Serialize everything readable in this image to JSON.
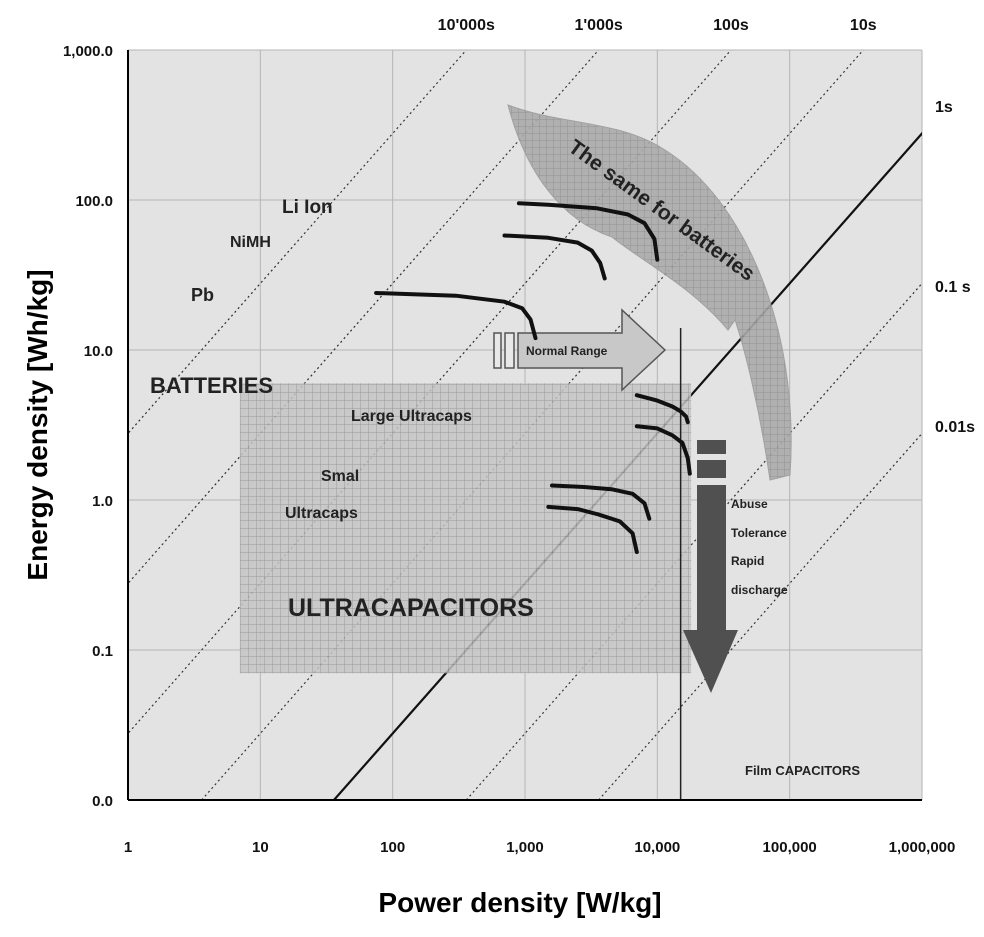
{
  "chart_data": {
    "type": "line",
    "title": "",
    "xlabel": "Power density [W/kg]",
    "ylabel": "Energy density [Wh/kg]",
    "x_scale": "log",
    "y_scale": "log",
    "xlim": [
      1,
      1000000
    ],
    "ylim": [
      0.01,
      1000
    ],
    "x_ticks": [
      1,
      10,
      100,
      1000,
      10000,
      100000,
      1000000
    ],
    "x_tick_labels": [
      "1",
      "10",
      "100",
      "1,000",
      "10,000",
      "100,000",
      "1,000,000"
    ],
    "y_ticks": [
      0.01,
      0.1,
      1,
      10,
      100,
      1000
    ],
    "y_tick_labels": [
      "0.0",
      "0.1",
      "1.0",
      "10.0",
      "100.0",
      "1,000.0"
    ],
    "grid": true,
    "time_constant_lines": [
      {
        "label": "10'000s",
        "seconds": 10000,
        "style": "dotted"
      },
      {
        "label": "1'000s",
        "seconds": 1000,
        "style": "dotted"
      },
      {
        "label": "100s",
        "seconds": 100,
        "style": "dotted"
      },
      {
        "label": "10s",
        "seconds": 10,
        "style": "dotted"
      },
      {
        "label": "1s",
        "seconds": 1,
        "style": "solid"
      },
      {
        "label": "0.1 s",
        "seconds": 0.1,
        "style": "dotted"
      },
      {
        "label": "0.01s",
        "seconds": 0.01,
        "style": "dotted"
      }
    ],
    "series": [
      {
        "name": "Li Ion",
        "x": [
          900,
          1500,
          3500,
          6000,
          8000,
          9500,
          10000
        ],
        "y": [
          95,
          93,
          88,
          80,
          70,
          55,
          40
        ]
      },
      {
        "name": "NiMH",
        "x": [
          700,
          1500,
          2500,
          3200,
          3700,
          4000
        ],
        "y": [
          58,
          56,
          52,
          46,
          38,
          30
        ]
      },
      {
        "name": "Pb",
        "x": [
          75,
          300,
          700,
          950,
          1100,
          1200
        ],
        "y": [
          24,
          23,
          21,
          19,
          16,
          12
        ]
      },
      {
        "name": "Large Ultracaps",
        "x": [
          7000,
          10000,
          13000,
          15000,
          16500,
          17000
        ],
        "y": [
          5,
          4.6,
          4.2,
          3.9,
          3.6,
          3.3
        ]
      },
      {
        "name": "Large Ultracaps",
        "x": [
          7000,
          10000,
          13000,
          15500,
          17000,
          17600
        ],
        "y": [
          3.1,
          3.0,
          2.7,
          2.4,
          1.9,
          1.5
        ]
      },
      {
        "name": "Small Ultracaps",
        "x": [
          1600,
          2800,
          4500,
          6500,
          8000,
          8700
        ],
        "y": [
          1.25,
          1.22,
          1.18,
          1.1,
          0.95,
          0.75
        ]
      },
      {
        "name": "Small Ultracaps",
        "x": [
          1500,
          2500,
          3600,
          5200,
          6500,
          7000
        ],
        "y": [
          0.9,
          0.87,
          0.8,
          0.72,
          0.6,
          0.45
        ]
      }
    ],
    "normal_range_marker_x": 15000,
    "ultracap_region": {
      "x": [
        7,
        18000
      ],
      "y": [
        0.07,
        6
      ]
    },
    "annotations": {
      "li_ion": "Li Ion",
      "nimh": "NiMH",
      "pb": "Pb",
      "batteries": "BATTERIES",
      "large_ultracaps": "Large Ultracaps",
      "small": "Smal",
      "ultracaps": "Ultracaps",
      "ultracapacitors": "ULTRACAPACITORS",
      "normal_range": "Normal Range",
      "abuse": "Abuse",
      "tolerance": "Tolerance",
      "rapid": "Rapid",
      "discharge": "discharge",
      "same_for_batteries": "The same for batteries",
      "film_capacitors": "Film CAPACITORS"
    },
    "colors": {
      "plot_bg": "#e3e3e3",
      "region_fill": "#c4c4c4",
      "curve": "#111111",
      "arrow_light": "#c8c8c8",
      "arrow_dark": "#505050",
      "curved_arrow": "#a9a9a9"
    }
  }
}
